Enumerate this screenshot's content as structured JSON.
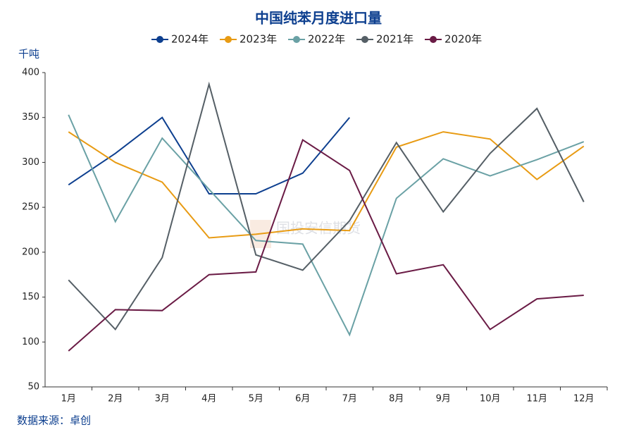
{
  "chart_data": {
    "type": "line",
    "title": "中国纯苯月度进口量",
    "y_label": "千吨",
    "source": "数据来源：卓创",
    "watermark": "国投安信期货",
    "categories": [
      "1月",
      "2月",
      "3月",
      "4月",
      "5月",
      "6月",
      "7月",
      "8月",
      "9月",
      "10月",
      "11月",
      "12月"
    ],
    "ylim": [
      50,
      400
    ],
    "yticks": [
      50,
      100,
      150,
      200,
      250,
      300,
      350,
      400
    ],
    "series": [
      {
        "name": "2024年",
        "color": "#0d3f8f",
        "values": [
          275,
          310,
          350,
          265,
          265,
          288,
          350,
          null,
          null,
          null,
          null,
          null
        ]
      },
      {
        "name": "2023年",
        "color": "#e89b13",
        "values": [
          334,
          300,
          278,
          216,
          220,
          226,
          224,
          317,
          334,
          326,
          281,
          318
        ]
      },
      {
        "name": "2022年",
        "color": "#6aa1a5",
        "values": [
          353,
          234,
          327,
          270,
          213,
          209,
          108,
          260,
          304,
          285,
          303,
          323
        ]
      },
      {
        "name": "2021年",
        "color": "#555f66",
        "values": [
          169,
          114,
          194,
          387,
          197,
          180,
          235,
          322,
          245,
          310,
          360,
          256
        ]
      },
      {
        "name": "2020年",
        "color": "#6a1b45",
        "values": [
          90,
          136,
          135,
          175,
          178,
          325,
          291,
          176,
          186,
          114,
          148,
          152
        ]
      }
    ]
  }
}
